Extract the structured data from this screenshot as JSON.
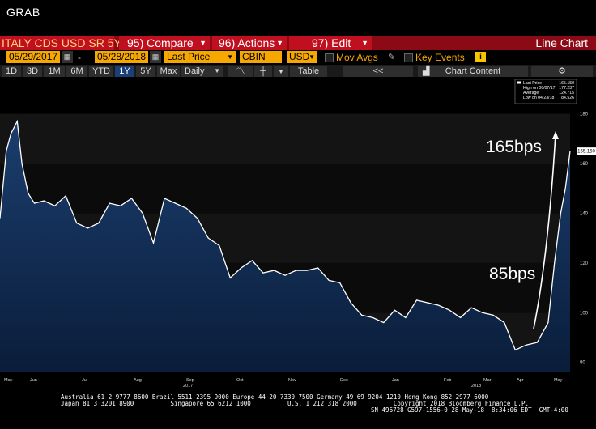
{
  "header": {
    "title": "GRAB"
  },
  "toolbar": {
    "security": "ITALY CDS USD SR 5Y",
    "compare": "95) Compare",
    "actions": "96) Actions",
    "edit": "97) Edit",
    "chart_type": "Line Chart"
  },
  "controls": {
    "start_date": "05/29/2017",
    "date_sep": "-",
    "end_date": "05/28/2018",
    "field": "Last Price",
    "source": "CBIN",
    "currency": "USD",
    "mov_avgs": "Mov Avgs",
    "key_events": "Key Events",
    "key_events_icon": "i"
  },
  "ranges": {
    "items": [
      "1D",
      "3D",
      "1M",
      "6M",
      "YTD",
      "1Y",
      "5Y",
      "Max"
    ],
    "active": "1Y",
    "frequency": "Daily",
    "table": "Table",
    "collapse": "<<",
    "chart_content": "Chart Content"
  },
  "legend": {
    "last_price_label": "Last Price",
    "last_price_value": "165.150",
    "high_label": "High on 06/07/17",
    "high_value": "177.237",
    "average_label": "Average",
    "average_value": "124.715",
    "low_label": "Low on 04/23/18",
    "low_value": "84.526"
  },
  "annotations": {
    "upper": "165bps",
    "lower": "85bps",
    "last_badge": "165.150"
  },
  "chart_data": {
    "type": "area",
    "title": "",
    "xlabel": "",
    "ylabel": "",
    "ylim": [
      76,
      188
    ],
    "yticks": [
      80,
      100,
      120,
      140,
      160,
      180
    ],
    "x_labels": [
      "May",
      "Jun",
      "Jul",
      "Aug",
      "Sep",
      "Oct",
      "Nov",
      "Dec",
      "Jan",
      "Feb",
      "Mar",
      "Apr",
      "May"
    ],
    "x_years": [
      "2017",
      "2018"
    ],
    "series": [
      {
        "name": "",
        "color": "#ffffff",
        "x": [
          "2017-05-29",
          "2017-06-02",
          "2017-06-05",
          "2017-06-09",
          "2017-06-12",
          "2017-06-16",
          "2017-06-20",
          "2017-06-26",
          "2017-07-03",
          "2017-07-10",
          "2017-07-17",
          "2017-07-24",
          "2017-07-31",
          "2017-08-07",
          "2017-08-14",
          "2017-08-21",
          "2017-08-28",
          "2017-09-04",
          "2017-09-11",
          "2017-09-18",
          "2017-09-25",
          "2017-10-02",
          "2017-10-09",
          "2017-10-16",
          "2017-10-23",
          "2017-10-30",
          "2017-11-06",
          "2017-11-13",
          "2017-11-20",
          "2017-11-27",
          "2017-12-04",
          "2017-12-11",
          "2017-12-18",
          "2017-12-25",
          "2018-01-01",
          "2018-01-08",
          "2018-01-15",
          "2018-01-22",
          "2018-01-29",
          "2018-02-05",
          "2018-02-12",
          "2018-02-19",
          "2018-02-26",
          "2018-03-05",
          "2018-03-12",
          "2018-03-19",
          "2018-03-26",
          "2018-04-02",
          "2018-04-09",
          "2018-04-16",
          "2018-04-23",
          "2018-04-30",
          "2018-05-07",
          "2018-05-14",
          "2018-05-18",
          "2018-05-22",
          "2018-05-25",
          "2018-05-28"
        ],
        "y": [
          138,
          165,
          172,
          177,
          160,
          148,
          144,
          145,
          143,
          147,
          136,
          134,
          136,
          144,
          143,
          146,
          140,
          128,
          146,
          144,
          142,
          138,
          130,
          127,
          114,
          118,
          121,
          116,
          117,
          115,
          117,
          117,
          118,
          113,
          112,
          104,
          99,
          98,
          96,
          101,
          98,
          105,
          104,
          103,
          101,
          98,
          102,
          100,
          99,
          96,
          85,
          87,
          88,
          96,
          120,
          140,
          150,
          165
        ]
      }
    ]
  },
  "footer": {
    "line1": "Australia 61 2 9777 8600 Brazil 5511 2395 9000 Europe 44 20 7330 7500 Germany 49 69 9204 1210 Hong Kong 852 2977 6000",
    "line2": "Japan 81 3 3201 8900          Singapore 65 6212 1000          U.S. 1 212 318 2000          Copyright 2018 Bloomberg Finance L.P.",
    "line3": "SN 496728 G597-1556-0 28-May-18  8:34:06 EDT  GMT-4:00"
  }
}
